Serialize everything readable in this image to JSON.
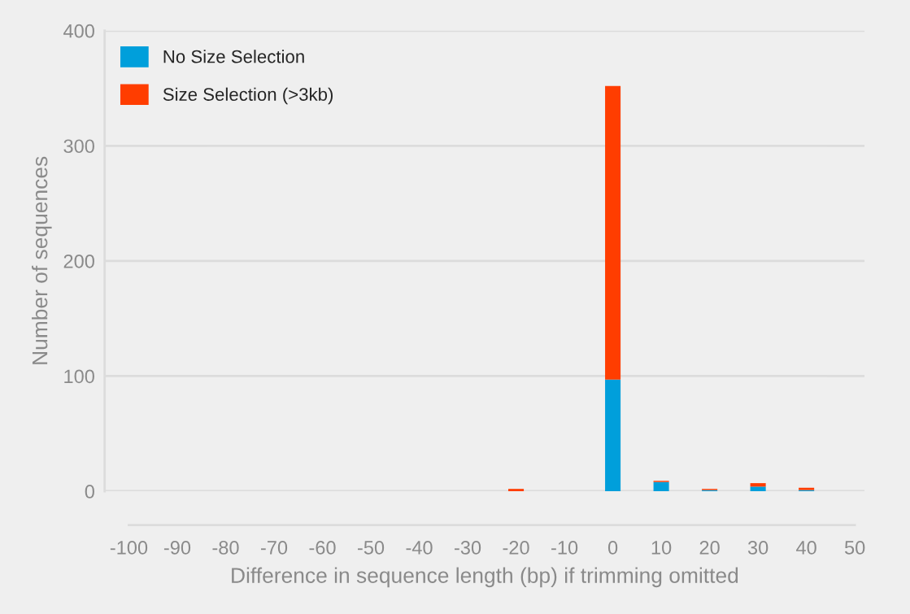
{
  "chart_data": {
    "type": "bar",
    "stacked": true,
    "xlabel": "Difference in sequence length (bp) if trimming omitted",
    "ylabel": "Number of sequences",
    "x": [
      -100,
      -90,
      -80,
      -70,
      -60,
      -50,
      -40,
      -30,
      -20,
      -10,
      0,
      10,
      20,
      30,
      40,
      50
    ],
    "series": [
      {
        "name": "No Size Selection",
        "color": "#009fdb",
        "values": [
          0,
          0,
          0,
          0,
          0,
          0,
          0,
          0,
          0,
          0,
          97,
          8,
          1,
          4,
          1,
          0
        ]
      },
      {
        "name": "Size Selection (>3kb)",
        "color": "#ff3d00",
        "values": [
          0,
          0,
          0,
          0,
          0,
          0,
          0,
          0,
          2,
          0,
          255,
          1,
          1,
          3,
          2,
          0
        ]
      }
    ],
    "xlim": [
      -105,
      52
    ],
    "xticks": [
      -100,
      -90,
      -80,
      -70,
      -60,
      -50,
      -40,
      -30,
      -20,
      -10,
      0,
      10,
      20,
      30,
      40,
      50
    ],
    "ylim": [
      0,
      400
    ],
    "yticks": [
      0,
      100,
      200,
      300,
      400
    ],
    "grid": "y",
    "legend": "top left"
  }
}
